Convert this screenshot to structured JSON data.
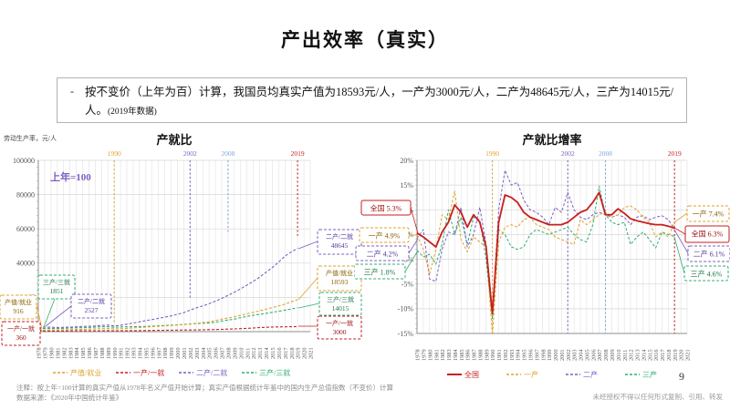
{
  "slide": {
    "title": "产出效率（真实）",
    "bullet": {
      "marker": "-",
      "text": "按不变价（上年为百）计算，我国员均真实产值为18593元/人，一产为3000元/人，二产为48645元/人，三产为14015元/人。",
      "suffix": "(2019年数据)"
    },
    "footer": {
      "note1": "注释：按上年=100计算的真实产值从1978年名义产值开始计算；真实产值根据统计年鉴中的国内生产总值指数（不变价）计算",
      "note2": "数据来源：《2020年中国统计年鉴》",
      "copyright": "未经授权不得以任何形式复制、引用、转发",
      "page_number": "9"
    }
  },
  "colors": {
    "gold": "#DFA32B",
    "red": "#C81E1E",
    "purple": "#7D5FC3",
    "green": "#2FAF6E",
    "blue": "#7EA6E0",
    "dark": {
      "gold": "#8a6200",
      "red": "#a01313",
      "purple": "#53389e",
      "green": "#1b7a4a",
      "blue": "#3a6ea8"
    }
  },
  "chart_data": [
    {
      "type": "line",
      "title": "产就比",
      "y_axis_label": "劳动生产率，元/人",
      "annotation": "上年=100",
      "x_start": 1978,
      "x_end": 2021,
      "data_years": [
        1978,
        2019
      ],
      "ylim": [
        0,
        100000
      ],
      "ytick_step": 20000,
      "ytick_minor": 4000,
      "grid": true,
      "legend_position": "bottom",
      "marker_years": [
        {
          "year": 1990,
          "color_key": "gold",
          "drop": 0.95
        },
        {
          "year": 2002,
          "color_key": "purple",
          "drop": 0.8
        },
        {
          "year": 2008,
          "color_key": "blue",
          "drop": 0.42
        },
        {
          "year": 2019,
          "color_key": "red",
          "drop": 0.44
        }
      ],
      "series": [
        {
          "name": "产值/就业",
          "color_key": "gold",
          "dash": "3,2",
          "width": 1.1,
          "values": [
            916,
            957,
            991,
            1016,
            1072,
            1152,
            1279,
            1400,
            1491,
            1625,
            1747,
            1791,
            1594,
            1713,
            1936,
            2178,
            2428,
            2659,
            2885,
            3116,
            3349,
            3584,
            3835,
            4103,
            4411,
            4786,
            5240,
            5764,
            6427,
            7295,
            7951,
            8667,
            9551,
            10439,
            11295,
            12176,
            13089,
            14032,
            15014,
            16065,
            17490,
            18593
          ]
        },
        {
          "name": "一产/一就",
          "color_key": "red",
          "dash": "3,2",
          "width": 1.1,
          "values": [
            360,
            367,
            356,
            363,
            396,
            428,
            488,
            507,
            515,
            538,
            557,
            571,
            482,
            499,
            531,
            568,
            605,
            654,
            709,
            759,
            808,
            857,
            895,
            931,
            964,
            993,
            1072,
            1147,
            1239,
            1350,
            1479,
            1604,
            1749,
            1932,
            2145,
            2370,
            2572,
            2700,
            2762,
            2800,
            2850,
            3000
          ]
        },
        {
          "name": "二产/二就",
          "color_key": "purple",
          "dash": "3,2",
          "width": 1.1,
          "values": [
            2527,
            2679,
            2572,
            2456,
            2505,
            2643,
            2775,
            3066,
            3143,
            3300,
            3647,
            3756,
            3343,
            3677,
            4339,
            4990,
            5763,
            6455,
            7100,
            7775,
            8436,
            9195,
            10160,
            11126,
            12628,
            13891,
            15071,
            16277,
            17742,
            19428,
            21176,
            22976,
            25044,
            27173,
            29347,
            31841,
            34643,
            37415,
            40595,
            44167,
            46500,
            48645
          ]
        },
        {
          "name": "三产/三就",
          "color_key": "green",
          "dash": "3,2",
          "width": 1.1,
          "values": [
            1851,
            1860,
            1879,
            1860,
            1916,
            2107,
            2213,
            2401,
            2473,
            2683,
            2898,
            2898,
            2550,
            2703,
            2838,
            2909,
            2967,
            3042,
            3194,
            3385,
            3572,
            3750,
            3956,
            4194,
            4466,
            4690,
            4877,
            5048,
            5401,
            6201,
            6759,
            7266,
            8200,
            8900,
            9500,
            10100,
            10700,
            11300,
            11900,
            12550,
            13250,
            14015
          ]
        }
      ],
      "callouts": [
        {
          "label": "产值/就业",
          "value": "916",
          "color_key": "gold"
        },
        {
          "label": "三产/三就",
          "value": "1851",
          "color_key": "green"
        },
        {
          "label": "二产/二就",
          "value": "2527",
          "color_key": "purple"
        },
        {
          "label": "一产/一就",
          "value": "360",
          "color_key": "red"
        },
        {
          "label": "二产/二就",
          "value": "48645",
          "color_key": "purple"
        },
        {
          "label": "产值/就业",
          "value": "18593",
          "color_key": "gold"
        },
        {
          "label": "三产/三就",
          "value": "14015",
          "color_key": "green"
        },
        {
          "label": "一产/一就",
          "value": "3000",
          "color_key": "red"
        }
      ]
    },
    {
      "type": "line",
      "title": "产就比增率",
      "x_start": 1978,
      "x_end": 2021,
      "data_years": [
        1978,
        2019
      ],
      "ylim": [
        -15,
        20
      ],
      "ytick_step": 5,
      "ytick_minor": 1,
      "ytick_suffix": "%",
      "grid": true,
      "legend_position": "bottom",
      "marker_years": [
        {
          "year": 1990,
          "color_key": "gold",
          "drop": 1
        },
        {
          "year": 2002,
          "color_key": "purple",
          "drop": 1
        },
        {
          "year": 2008,
          "color_key": "blue",
          "drop": 1
        },
        {
          "year": 2019,
          "color_key": "red",
          "drop": 1
        }
      ],
      "series": [
        {
          "name": "全国",
          "color_key": "red",
          "dash": null,
          "width": 1.8,
          "values": [
            5.3,
            4.5,
            3.5,
            2.5,
            5.5,
            7.5,
            11.0,
            9.5,
            6.5,
            9.0,
            7.5,
            2.5,
            -11.0,
            7.5,
            13.0,
            12.5,
            11.5,
            9.5,
            8.5,
            8.0,
            7.5,
            7.0,
            7.0,
            7.0,
            7.5,
            8.5,
            9.5,
            10.0,
            11.5,
            13.5,
            9.0,
            9.0,
            10.2,
            9.3,
            8.2,
            7.8,
            7.5,
            7.2,
            7.0,
            7.0,
            6.7,
            6.3
          ]
        },
        {
          "name": "一产",
          "color_key": "gold",
          "dash": "3,2",
          "width": 1,
          "values": [
            4.9,
            2.0,
            -3.0,
            2.0,
            9.0,
            8.0,
            13.8,
            4.0,
            1.5,
            4.5,
            3.5,
            2.5,
            -15.3,
            3.5,
            6.5,
            7.0,
            6.5,
            8.0,
            8.5,
            7.0,
            6.5,
            6.0,
            4.5,
            4.0,
            3.5,
            3.0,
            8.0,
            7.0,
            8.0,
            9.0,
            9.5,
            8.5,
            9.0,
            10.5,
            10.8,
            10.0,
            8.5,
            7.5,
            4.5,
            5.5,
            4.5,
            7.4
          ]
        },
        {
          "name": "二产",
          "color_key": "purple",
          "dash": "3,2",
          "width": 1,
          "values": [
            4.2,
            6.0,
            -4.0,
            -4.5,
            2.0,
            5.5,
            5.0,
            10.5,
            2.5,
            5.0,
            10.5,
            3.0,
            -11.0,
            10.0,
            18.0,
            15.0,
            15.5,
            12.0,
            10.0,
            9.5,
            8.5,
            7.0,
            10.5,
            9.5,
            13.5,
            10.0,
            8.5,
            8.0,
            9.0,
            9.5,
            9.0,
            8.5,
            9.0,
            8.5,
            7.0,
            8.5,
            8.8,
            8.0,
            8.5,
            8.8,
            8.0,
            6.1
          ]
        },
        {
          "name": "三产",
          "color_key": "green",
          "dash": "3,2",
          "width": 1,
          "values": [
            1.8,
            0.5,
            1.0,
            -1.0,
            3.0,
            10.0,
            5.0,
            8.5,
            3.0,
            8.5,
            8.0,
            0.0,
            -12.0,
            6.0,
            5.0,
            2.5,
            2.0,
            2.5,
            5.0,
            6.0,
            5.5,
            5.0,
            5.5,
            6.0,
            6.5,
            5.0,
            4.0,
            3.5,
            7.0,
            14.8,
            9.0,
            7.5,
            7.0,
            7.5,
            3.0,
            4.5,
            5.5,
            4.0,
            2.3,
            5.5,
            5.0,
            4.6
          ]
        }
      ],
      "callouts": [
        {
          "label": "全国",
          "value": "5.3%",
          "color_key": "red",
          "solid": true
        },
        {
          "label": "一产",
          "value": "4.9%",
          "color_key": "gold"
        },
        {
          "label": "二产",
          "value": "4.2%",
          "color_key": "purple"
        },
        {
          "label": "三产",
          "value": "1.8%",
          "color_key": "green"
        },
        {
          "label": "一产",
          "value": "7.4%",
          "color_key": "gold"
        },
        {
          "label": "全国",
          "value": "6.3%",
          "color_key": "red",
          "solid": true
        },
        {
          "label": "二产",
          "value": "6.1%",
          "color_key": "purple"
        },
        {
          "label": "三产",
          "value": "4.6%",
          "color_key": "green"
        }
      ]
    }
  ]
}
